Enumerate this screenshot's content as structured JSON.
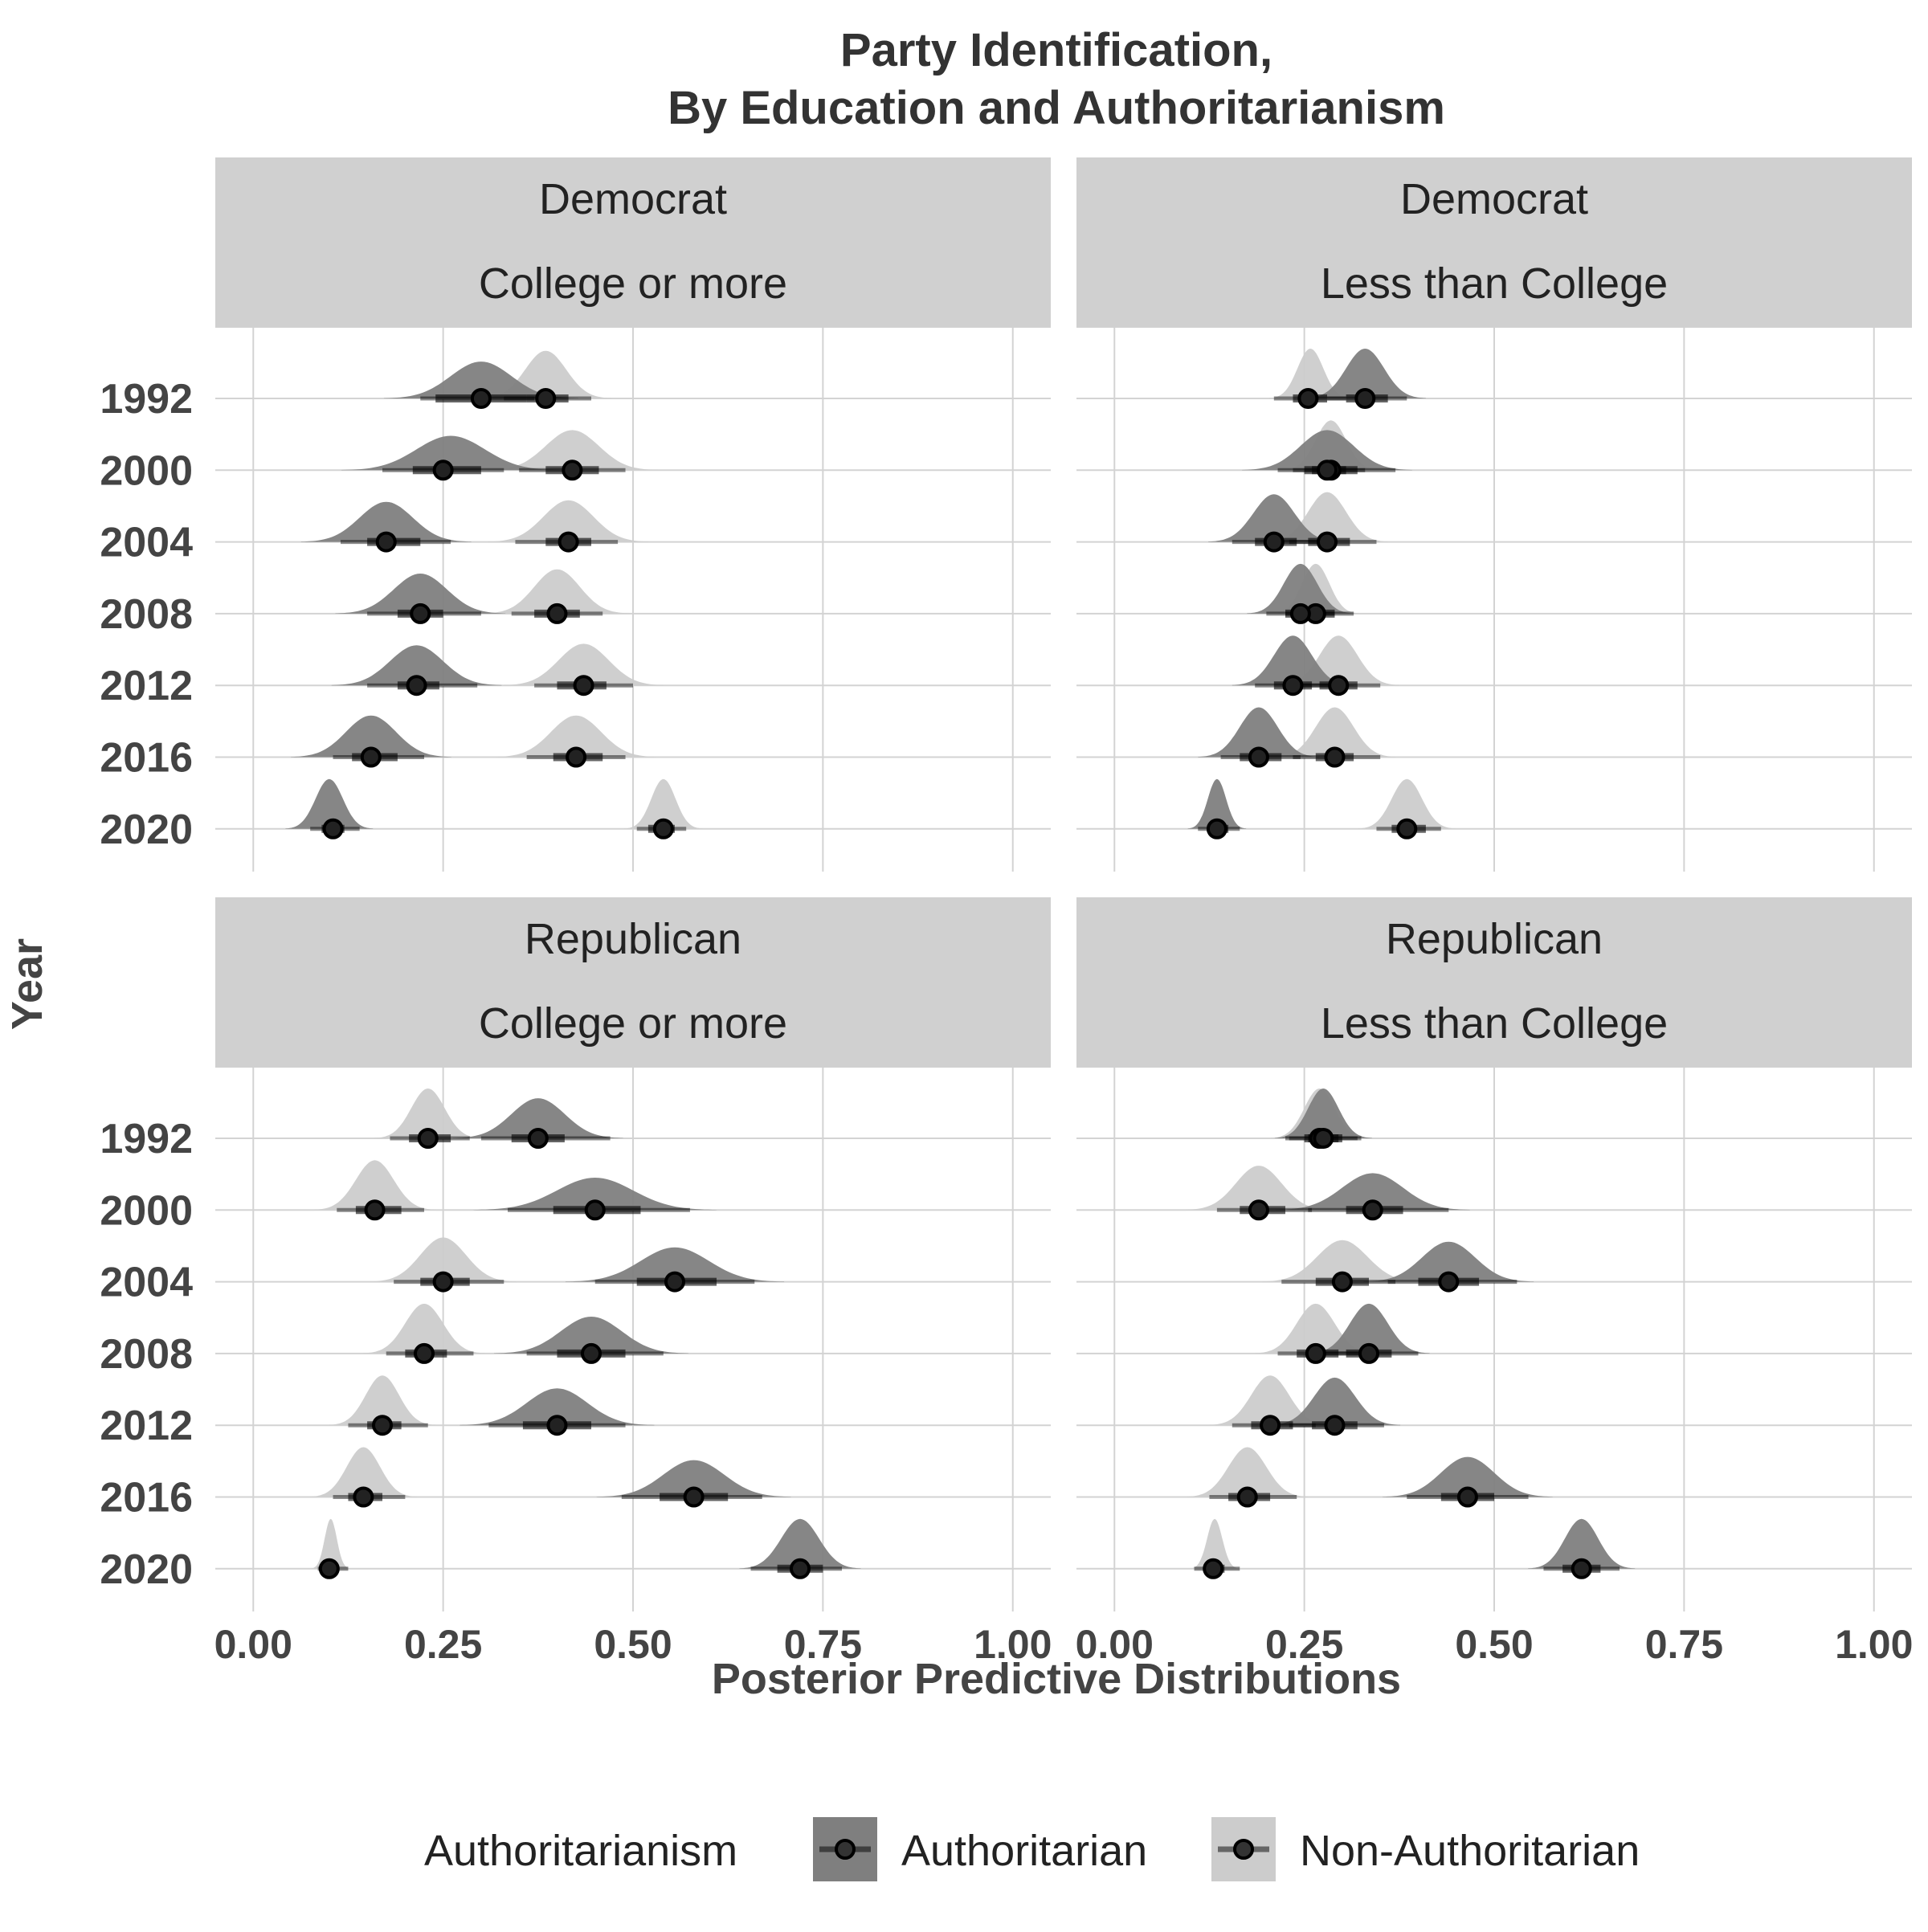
{
  "chart_data": {
    "type": "ridgeline-interval",
    "title_line1": "Party Identification,",
    "title_line2": "By Education and Authoritarianism",
    "xlabel": "Posterior Predictive Distributions",
    "ylabel": "Year",
    "xlim": [
      -0.05,
      1.05
    ],
    "xticks": [
      {
        "value": 0,
        "label": "0.00"
      },
      {
        "value": 0.25,
        "label": "0.25"
      },
      {
        "value": 0.5,
        "label": "0.50"
      },
      {
        "value": 0.75,
        "label": "0.75"
      },
      {
        "value": 1,
        "label": "1.00"
      }
    ],
    "years": [
      "1992",
      "2000",
      "2004",
      "2008",
      "2012",
      "2016",
      "2020"
    ],
    "legend": {
      "title": "Authoritarianism",
      "position": "bottom",
      "items": [
        {
          "key": "auth",
          "label": "Authoritarian",
          "fill": "#7f7f7f"
        },
        {
          "key": "non",
          "label": "Non-Authoritarian",
          "fill": "#cccccc"
        }
      ]
    },
    "panels": [
      {
        "strip_line1": "Democrat",
        "strip_line2": "College or more",
        "series": {
          "auth": [
            {
              "year": "1992",
              "median": 0.3,
              "lo66": 0.24,
              "hi66": 0.36,
              "lo95": 0.22,
              "hi95": 0.37,
              "peak": 0.3,
              "sd": 0.04
            },
            {
              "year": "2000",
              "median": 0.25,
              "lo66": 0.21,
              "hi66": 0.3,
              "lo95": 0.17,
              "hi95": 0.33,
              "peak": 0.26,
              "sd": 0.045
            },
            {
              "year": "2004",
              "median": 0.175,
              "lo66": 0.15,
              "hi66": 0.22,
              "lo95": 0.115,
              "hi95": 0.26,
              "peak": 0.175,
              "sd": 0.035
            },
            {
              "year": "2008",
              "median": 0.22,
              "lo66": 0.19,
              "hi66": 0.25,
              "lo95": 0.15,
              "hi95": 0.3,
              "peak": 0.22,
              "sd": 0.035
            },
            {
              "year": "2012",
              "median": 0.215,
              "lo66": 0.19,
              "hi66": 0.245,
              "lo95": 0.15,
              "hi95": 0.295,
              "peak": 0.215,
              "sd": 0.035
            },
            {
              "year": "2016",
              "median": 0.155,
              "lo66": 0.13,
              "hi66": 0.19,
              "lo95": 0.105,
              "hi95": 0.225,
              "peak": 0.155,
              "sd": 0.033
            },
            {
              "year": "2020",
              "median": 0.105,
              "lo66": 0.09,
              "hi66": 0.12,
              "lo95": 0.075,
              "hi95": 0.14,
              "peak": 0.1,
              "sd": 0.018
            }
          ],
          "non": [
            {
              "year": "1992",
              "median": 0.385,
              "lo66": 0.36,
              "hi66": 0.415,
              "lo95": 0.33,
              "hi95": 0.445,
              "peak": 0.385,
              "sd": 0.027
            },
            {
              "year": "2000",
              "median": 0.42,
              "lo66": 0.385,
              "hi66": 0.455,
              "lo95": 0.35,
              "hi95": 0.49,
              "peak": 0.42,
              "sd": 0.035
            },
            {
              "year": "2004",
              "median": 0.415,
              "lo66": 0.385,
              "hi66": 0.445,
              "lo95": 0.345,
              "hi95": 0.48,
              "peak": 0.415,
              "sd": 0.033
            },
            {
              "year": "2008",
              "median": 0.4,
              "lo66": 0.37,
              "hi66": 0.43,
              "lo95": 0.34,
              "hi95": 0.46,
              "peak": 0.4,
              "sd": 0.03
            },
            {
              "year": "2012",
              "median": 0.435,
              "lo66": 0.4,
              "hi66": 0.465,
              "lo95": 0.37,
              "hi95": 0.5,
              "peak": 0.435,
              "sd": 0.033
            },
            {
              "year": "2016",
              "median": 0.425,
              "lo66": 0.395,
              "hi66": 0.46,
              "lo95": 0.36,
              "hi95": 0.49,
              "peak": 0.425,
              "sd": 0.033
            },
            {
              "year": "2020",
              "median": 0.54,
              "lo66": 0.52,
              "hi66": 0.555,
              "lo95": 0.505,
              "hi95": 0.57,
              "peak": 0.54,
              "sd": 0.016
            }
          ]
        }
      },
      {
        "strip_line1": "Democrat",
        "strip_line2": "Less than College",
        "series": {
          "auth": [
            {
              "year": "1992",
              "median": 0.33,
              "lo66": 0.305,
              "hi66": 0.36,
              "lo95": 0.28,
              "hi95": 0.385,
              "peak": 0.33,
              "sd": 0.025
            },
            {
              "year": "2000",
              "median": 0.28,
              "lo66": 0.25,
              "hi66": 0.32,
              "lo95": 0.215,
              "hi95": 0.37,
              "peak": 0.28,
              "sd": 0.035
            },
            {
              "year": "2004",
              "median": 0.21,
              "lo66": 0.185,
              "hi66": 0.24,
              "lo95": 0.155,
              "hi95": 0.27,
              "peak": 0.21,
              "sd": 0.027
            },
            {
              "year": "2008",
              "median": 0.245,
              "lo66": 0.225,
              "hi66": 0.27,
              "lo95": 0.2,
              "hi95": 0.29,
              "peak": 0.245,
              "sd": 0.022
            },
            {
              "year": "2012",
              "median": 0.235,
              "lo66": 0.21,
              "hi66": 0.26,
              "lo95": 0.185,
              "hi95": 0.29,
              "peak": 0.235,
              "sd": 0.025
            },
            {
              "year": "2016",
              "median": 0.19,
              "lo66": 0.165,
              "hi66": 0.22,
              "lo95": 0.14,
              "hi95": 0.245,
              "peak": 0.19,
              "sd": 0.025
            },
            {
              "year": "2020",
              "median": 0.135,
              "lo66": 0.125,
              "hi66": 0.15,
              "lo95": 0.11,
              "hi95": 0.165,
              "peak": 0.135,
              "sd": 0.012
            }
          ],
          "non": [
            {
              "year": "1992",
              "median": 0.255,
              "lo66": 0.235,
              "hi66": 0.28,
              "lo95": 0.21,
              "hi95": 0.305,
              "peak": 0.258,
              "sd": 0.017
            },
            {
              "year": "2000",
              "median": 0.285,
              "lo66": 0.26,
              "hi66": 0.305,
              "lo95": 0.235,
              "hi95": 0.33,
              "peak": 0.285,
              "sd": 0.02
            },
            {
              "year": "2004",
              "median": 0.28,
              "lo66": 0.255,
              "hi66": 0.31,
              "lo95": 0.23,
              "hi95": 0.345,
              "peak": 0.28,
              "sd": 0.025
            },
            {
              "year": "2008",
              "median": 0.265,
              "lo66": 0.245,
              "hi66": 0.29,
              "lo95": 0.225,
              "hi95": 0.315,
              "peak": 0.265,
              "sd": 0.018
            },
            {
              "year": "2012",
              "median": 0.295,
              "lo66": 0.27,
              "hi66": 0.32,
              "lo95": 0.245,
              "hi95": 0.35,
              "peak": 0.295,
              "sd": 0.025
            },
            {
              "year": "2016",
              "median": 0.29,
              "lo66": 0.265,
              "hi66": 0.315,
              "lo95": 0.235,
              "hi95": 0.35,
              "peak": 0.29,
              "sd": 0.025
            },
            {
              "year": "2020",
              "median": 0.385,
              "lo66": 0.365,
              "hi66": 0.41,
              "lo95": 0.345,
              "hi95": 0.43,
              "peak": 0.385,
              "sd": 0.02
            }
          ]
        }
      },
      {
        "strip_line1": "Republican",
        "strip_line2": "College or more",
        "series": {
          "auth": [
            {
              "year": "1992",
              "median": 0.375,
              "lo66": 0.34,
              "hi66": 0.41,
              "lo95": 0.3,
              "hi95": 0.47,
              "peak": 0.375,
              "sd": 0.035
            },
            {
              "year": "2000",
              "median": 0.45,
              "lo66": 0.395,
              "hi66": 0.51,
              "lo95": 0.335,
              "hi95": 0.575,
              "peak": 0.45,
              "sd": 0.05
            },
            {
              "year": "2004",
              "median": 0.555,
              "lo66": 0.505,
              "hi66": 0.61,
              "lo95": 0.45,
              "hi95": 0.66,
              "peak": 0.555,
              "sd": 0.045
            },
            {
              "year": "2008",
              "median": 0.445,
              "lo66": 0.4,
              "hi66": 0.49,
              "lo95": 0.36,
              "hi95": 0.54,
              "peak": 0.445,
              "sd": 0.04
            },
            {
              "year": "2012",
              "median": 0.4,
              "lo66": 0.355,
              "hi66": 0.445,
              "lo95": 0.31,
              "hi95": 0.49,
              "peak": 0.4,
              "sd": 0.04
            },
            {
              "year": "2016",
              "median": 0.58,
              "lo66": 0.535,
              "hi66": 0.625,
              "lo95": 0.485,
              "hi95": 0.67,
              "peak": 0.58,
              "sd": 0.04
            },
            {
              "year": "2020",
              "median": 0.72,
              "lo66": 0.69,
              "hi66": 0.75,
              "lo95": 0.655,
              "hi95": 0.775,
              "peak": 0.72,
              "sd": 0.025
            }
          ],
          "non": [
            {
              "year": "1992",
              "median": 0.23,
              "lo66": 0.205,
              "hi66": 0.26,
              "lo95": 0.18,
              "hi95": 0.285,
              "peak": 0.23,
              "sd": 0.022
            },
            {
              "year": "2000",
              "median": 0.16,
              "lo66": 0.135,
              "hi66": 0.195,
              "lo95": 0.11,
              "hi95": 0.225,
              "peak": 0.16,
              "sd": 0.025
            },
            {
              "year": "2004",
              "median": 0.25,
              "lo66": 0.22,
              "hi66": 0.285,
              "lo95": 0.185,
              "hi95": 0.33,
              "peak": 0.25,
              "sd": 0.03
            },
            {
              "year": "2008",
              "median": 0.225,
              "lo66": 0.2,
              "hi66": 0.255,
              "lo95": 0.175,
              "hi95": 0.29,
              "peak": 0.225,
              "sd": 0.025
            },
            {
              "year": "2012",
              "median": 0.17,
              "lo66": 0.15,
              "hi66": 0.195,
              "lo95": 0.125,
              "hi95": 0.23,
              "peak": 0.17,
              "sd": 0.022
            },
            {
              "year": "2016",
              "median": 0.145,
              "lo66": 0.125,
              "hi66": 0.17,
              "lo95": 0.105,
              "hi95": 0.2,
              "peak": 0.145,
              "sd": 0.022
            },
            {
              "year": "2020",
              "median": 0.1,
              "lo66": 0.095,
              "hi66": 0.11,
              "lo95": 0.085,
              "hi95": 0.125,
              "peak": 0.102,
              "sd": 0.008
            }
          ]
        }
      },
      {
        "strip_line1": "Republican",
        "strip_line2": "Less than College",
        "series": {
          "auth": [
            {
              "year": "1992",
              "median": 0.275,
              "lo66": 0.255,
              "hi66": 0.3,
              "lo95": 0.23,
              "hi95": 0.325,
              "peak": 0.275,
              "sd": 0.02
            },
            {
              "year": "2000",
              "median": 0.34,
              "lo66": 0.305,
              "hi66": 0.38,
              "lo95": 0.255,
              "hi95": 0.44,
              "peak": 0.34,
              "sd": 0.04
            },
            {
              "year": "2004",
              "median": 0.44,
              "lo66": 0.4,
              "hi66": 0.48,
              "lo95": 0.36,
              "hi95": 0.53,
              "peak": 0.44,
              "sd": 0.035
            },
            {
              "year": "2008",
              "median": 0.335,
              "lo66": 0.305,
              "hi66": 0.365,
              "lo95": 0.275,
              "hi95": 0.4,
              "peak": 0.335,
              "sd": 0.025
            },
            {
              "year": "2012",
              "median": 0.29,
              "lo66": 0.26,
              "hi66": 0.32,
              "lo95": 0.23,
              "hi95": 0.355,
              "peak": 0.29,
              "sd": 0.027
            },
            {
              "year": "2016",
              "median": 0.465,
              "lo66": 0.43,
              "hi66": 0.5,
              "lo95": 0.385,
              "hi95": 0.545,
              "peak": 0.465,
              "sd": 0.035
            },
            {
              "year": "2020",
              "median": 0.615,
              "lo66": 0.59,
              "hi66": 0.64,
              "lo95": 0.565,
              "hi95": 0.665,
              "peak": 0.615,
              "sd": 0.022
            }
          ],
          "non": [
            {
              "year": "1992",
              "median": 0.27,
              "lo66": 0.25,
              "hi66": 0.295,
              "lo95": 0.225,
              "hi95": 0.32,
              "peak": 0.27,
              "sd": 0.02
            },
            {
              "year": "2000",
              "median": 0.19,
              "lo66": 0.165,
              "hi66": 0.225,
              "lo95": 0.135,
              "hi95": 0.26,
              "peak": 0.19,
              "sd": 0.03
            },
            {
              "year": "2004",
              "median": 0.3,
              "lo66": 0.265,
              "hi66": 0.335,
              "lo95": 0.22,
              "hi95": 0.37,
              "peak": 0.3,
              "sd": 0.033
            },
            {
              "year": "2008",
              "median": 0.265,
              "lo66": 0.24,
              "hi66": 0.295,
              "lo95": 0.215,
              "hi95": 0.325,
              "peak": 0.265,
              "sd": 0.025
            },
            {
              "year": "2012",
              "median": 0.205,
              "lo66": 0.18,
              "hi66": 0.235,
              "lo95": 0.155,
              "hi95": 0.265,
              "peak": 0.205,
              "sd": 0.025
            },
            {
              "year": "2016",
              "median": 0.175,
              "lo66": 0.15,
              "hi66": 0.205,
              "lo95": 0.125,
              "hi95": 0.24,
              "peak": 0.175,
              "sd": 0.025
            },
            {
              "year": "2020",
              "median": 0.13,
              "lo66": 0.12,
              "hi66": 0.145,
              "lo95": 0.105,
              "hi95": 0.165,
              "peak": 0.132,
              "sd": 0.01
            }
          ]
        }
      }
    ]
  }
}
